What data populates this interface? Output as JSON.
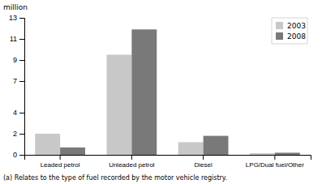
{
  "chart_data": {
    "type": "bar",
    "categories": [
      "Leaded petrol",
      "Unleaded petrol",
      "Diesel",
      "LPG/Dual fuel/Other"
    ],
    "series": [
      {
        "name": "2003",
        "color": "#c8c8c8",
        "values": [
          2.0,
          9.5,
          1.2,
          0.15
        ]
      },
      {
        "name": "2008",
        "color": "#797979",
        "values": [
          0.7,
          11.9,
          1.8,
          0.2
        ]
      }
    ],
    "ylabel": "million",
    "ylim": [
      0,
      13
    ],
    "yticks": [
      0,
      2,
      4,
      7,
      9,
      11,
      13
    ],
    "legend": "upper right",
    "grid": false,
    "footnote": "(a) Relates to the type of fuel recorded by the motor vehicle registry."
  }
}
